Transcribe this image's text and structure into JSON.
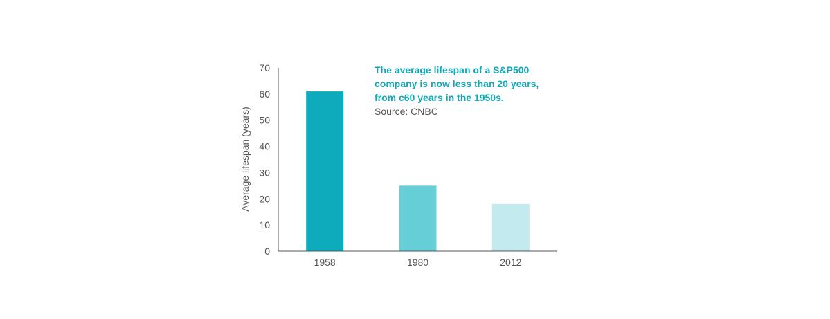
{
  "chart_data": {
    "type": "bar",
    "categories": [
      "1958",
      "1980",
      "2012"
    ],
    "values": [
      61,
      25,
      18
    ],
    "bar_colors": [
      "#0eabbd",
      "#66ced7",
      "#c2eaef"
    ],
    "ylabel": "Average lifespan (years)",
    "xlabel": "",
    "ylim": [
      0,
      70
    ],
    "yticks": [
      0,
      10,
      20,
      30,
      40,
      50,
      60,
      70
    ],
    "grid": false,
    "axis_color": "#555555"
  },
  "annotation": {
    "lines": [
      "The average lifespan of a S&P500",
      "company is now less than 20 years,",
      "from c60 years in the 1950s."
    ],
    "color": "#13aab8"
  },
  "source": {
    "prefix": "Source: ",
    "link_text": "CNBC"
  }
}
